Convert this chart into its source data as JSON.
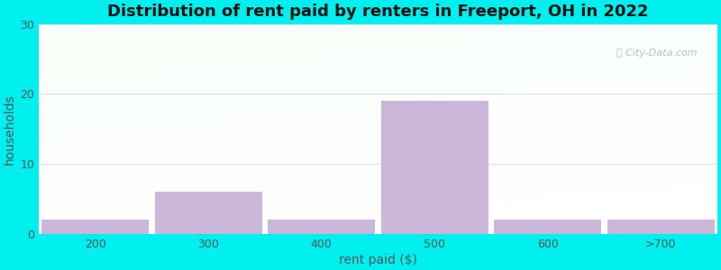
{
  "title": "Distribution of rent paid by renters in Freeport, OH in 2022",
  "categories": [
    "200",
    "300",
    "400",
    "500",
    "600",
    ">700"
  ],
  "values": [
    2,
    6,
    2,
    19,
    2,
    2
  ],
  "bar_color": "#c4aad4",
  "xlabel": "rent paid ($)",
  "ylabel": "households",
  "ylim": [
    0,
    30
  ],
  "yticks": [
    0,
    10,
    20,
    30
  ],
  "background_outer": "#00efef",
  "title_fontsize": 13,
  "axis_label_fontsize": 10,
  "tick_fontsize": 9,
  "bar_width": 0.95,
  "watermark": "City-Data.com",
  "grid_color": "#e0e0e0"
}
